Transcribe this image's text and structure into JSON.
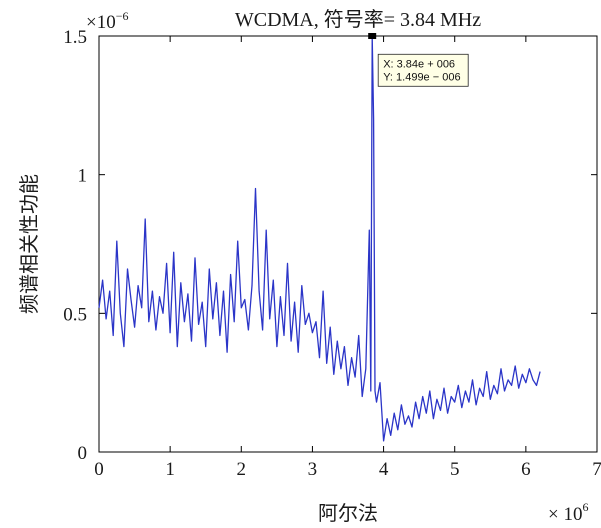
{
  "chart_data": {
    "type": "line",
    "title": "WCDMA, 符号率= 3.84 MHz",
    "xlabel": "阿尔法",
    "ylabel": "频谱相关性功能",
    "x_multiplier": {
      "base": "× 10",
      "exponent": "6"
    },
    "y_multiplier": {
      "base": "×10",
      "exponent": "−6"
    },
    "xlim": [
      0,
      7
    ],
    "ylim": [
      0,
      1.5
    ],
    "x_ticks": [
      0,
      1,
      2,
      3,
      4,
      5,
      6,
      7
    ],
    "x_tick_labels": [
      "0",
      "1",
      "2",
      "3",
      "4",
      "5",
      "6",
      "7"
    ],
    "y_ticks": [
      0,
      0.5,
      1,
      1.5
    ],
    "y_tick_labels": [
      "0",
      "0.5",
      "1",
      "1.5"
    ],
    "grid": false,
    "line_color": "#2b35c8",
    "series": [
      {
        "x": [
          0,
          0.05,
          0.1,
          0.15,
          0.2,
          0.25,
          0.3,
          0.35,
          0.4,
          0.45,
          0.5,
          0.55,
          0.6,
          0.65,
          0.7,
          0.75,
          0.8,
          0.85,
          0.9,
          0.95,
          1.0,
          1.05,
          1.1,
          1.15,
          1.2,
          1.25,
          1.3,
          1.35,
          1.4,
          1.45,
          1.5,
          1.55,
          1.6,
          1.65,
          1.7,
          1.75,
          1.8,
          1.85,
          1.9,
          1.95,
          2.0,
          2.05,
          2.1,
          2.15,
          2.2,
          2.25,
          2.3,
          2.35,
          2.4,
          2.45,
          2.5,
          2.55,
          2.6,
          2.65,
          2.7,
          2.75,
          2.8,
          2.85,
          2.9,
          2.95,
          3.0,
          3.05,
          3.1,
          3.15,
          3.2,
          3.25,
          3.3,
          3.35,
          3.4,
          3.45,
          3.5,
          3.55,
          3.6,
          3.65,
          3.7,
          3.75,
          3.8,
          3.82,
          3.84,
          3.86,
          3.88,
          3.9,
          3.95,
          4.0,
          4.05,
          4.1,
          4.15,
          4.2,
          4.25,
          4.3,
          4.35,
          4.4,
          4.45,
          4.5,
          4.55,
          4.6,
          4.65,
          4.7,
          4.75,
          4.8,
          4.85,
          4.9,
          4.95,
          5.0,
          5.05,
          5.1,
          5.15,
          5.2,
          5.25,
          5.3,
          5.35,
          5.4,
          5.45,
          5.5,
          5.55,
          5.6,
          5.65,
          5.7,
          5.75,
          5.8,
          5.85,
          5.9,
          5.95,
          6.0,
          6.05,
          6.1,
          6.15,
          6.2
        ],
        "y": [
          0.52,
          0.62,
          0.48,
          0.58,
          0.42,
          0.76,
          0.5,
          0.38,
          0.66,
          0.55,
          0.45,
          0.6,
          0.52,
          0.84,
          0.47,
          0.58,
          0.44,
          0.56,
          0.5,
          0.68,
          0.43,
          0.72,
          0.38,
          0.61,
          0.47,
          0.57,
          0.4,
          0.7,
          0.46,
          0.54,
          0.38,
          0.66,
          0.48,
          0.61,
          0.42,
          0.58,
          0.36,
          0.64,
          0.47,
          0.76,
          0.52,
          0.55,
          0.44,
          0.6,
          0.95,
          0.58,
          0.44,
          0.8,
          0.48,
          0.62,
          0.38,
          0.56,
          0.42,
          0.68,
          0.4,
          0.54,
          0.36,
          0.6,
          0.46,
          0.5,
          0.43,
          0.47,
          0.34,
          0.58,
          0.32,
          0.45,
          0.28,
          0.4,
          0.3,
          0.38,
          0.24,
          0.34,
          0.27,
          0.42,
          0.2,
          0.3,
          0.8,
          0.22,
          1.499,
          1.2,
          0.22,
          0.18,
          0.25,
          0.04,
          0.12,
          0.06,
          0.14,
          0.08,
          0.17,
          0.1,
          0.13,
          0.09,
          0.18,
          0.12,
          0.2,
          0.14,
          0.22,
          0.12,
          0.19,
          0.15,
          0.23,
          0.14,
          0.2,
          0.18,
          0.24,
          0.16,
          0.22,
          0.18,
          0.26,
          0.17,
          0.23,
          0.2,
          0.29,
          0.19,
          0.24,
          0.21,
          0.3,
          0.22,
          0.26,
          0.24,
          0.31,
          0.23,
          0.28,
          0.25,
          0.3,
          0.26,
          0.24,
          0.29
        ]
      }
    ],
    "datatip": {
      "x_text": "X: 3.84e + 006",
      "y_text": "Y: 1.499e − 006",
      "x": 3.84,
      "y": 1.499
    }
  }
}
